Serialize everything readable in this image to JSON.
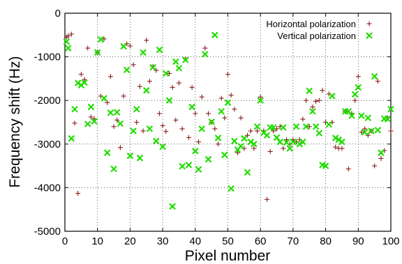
{
  "chart_data": {
    "type": "scatter",
    "xlabel": "Pixel number",
    "ylabel": "Frequency shift (Hz)",
    "xlim": [
      0,
      100
    ],
    "ylim": [
      -5000,
      0
    ],
    "xticks": [
      0,
      10,
      20,
      30,
      40,
      50,
      60,
      70,
      80,
      90,
      100
    ],
    "yticks": [
      0,
      -1000,
      -2000,
      -3000,
      -4000,
      -5000
    ],
    "grid": "dotted",
    "legend_position": "top-right",
    "series": [
      {
        "name": "Horizontal polarization",
        "marker": "plus",
        "color": "#8b1a1a",
        "points": [
          [
            0.5,
            -550
          ],
          [
            1,
            -520
          ],
          [
            2,
            -480
          ],
          [
            3,
            -2520
          ],
          [
            4,
            -4130
          ],
          [
            5,
            -1400
          ],
          [
            6,
            -1520
          ],
          [
            7,
            -800
          ],
          [
            8,
            -2380
          ],
          [
            9,
            -2420
          ],
          [
            10,
            -900
          ],
          [
            11,
            -1900
          ],
          [
            12,
            -590
          ],
          [
            13,
            -2050
          ],
          [
            14,
            -1450
          ],
          [
            15,
            -2600
          ],
          [
            16,
            -2450
          ],
          [
            17,
            -3080
          ],
          [
            18,
            -1900
          ],
          [
            19,
            -700
          ],
          [
            20,
            -750
          ],
          [
            21,
            -1180
          ],
          [
            22,
            -2500
          ],
          [
            23,
            -1680
          ],
          [
            24,
            -2700
          ],
          [
            25,
            -620
          ],
          [
            26,
            -1560
          ],
          [
            27,
            -1220
          ],
          [
            28,
            -1310
          ],
          [
            29,
            -2300
          ],
          [
            30,
            -2580
          ],
          [
            31,
            -2710
          ],
          [
            32,
            -1380
          ],
          [
            33,
            -1700
          ],
          [
            34,
            -2450
          ],
          [
            35,
            -1600
          ],
          [
            36,
            -2650
          ],
          [
            37,
            -1050
          ],
          [
            38,
            -2850
          ],
          [
            39,
            -1700
          ],
          [
            40,
            -2300
          ],
          [
            41,
            -2950
          ],
          [
            42,
            -1920
          ],
          [
            43,
            -800
          ],
          [
            44,
            -2300
          ],
          [
            45,
            -2500
          ],
          [
            46,
            -2650
          ],
          [
            47,
            -3000
          ],
          [
            48,
            -1950
          ],
          [
            49,
            -2400
          ],
          [
            50,
            -1400
          ],
          [
            51,
            -1880
          ],
          [
            52,
            -2200
          ],
          [
            53,
            -3200
          ],
          [
            54,
            -2400
          ],
          [
            55,
            -3100
          ],
          [
            56,
            -2800
          ],
          [
            57,
            -2700
          ],
          [
            58,
            -3100
          ],
          [
            59,
            -2700
          ],
          [
            60,
            -1920
          ],
          [
            61,
            -2700
          ],
          [
            62,
            -4270
          ],
          [
            63,
            -3170
          ],
          [
            64,
            -2700
          ],
          [
            65,
            -2650
          ],
          [
            66,
            -2600
          ],
          [
            67,
            -3100
          ],
          [
            68,
            -2900
          ],
          [
            69,
            -3000
          ],
          [
            70,
            -2900
          ],
          [
            71,
            -2950
          ],
          [
            72,
            -2900
          ],
          [
            73,
            -2430
          ],
          [
            74,
            -2000
          ],
          [
            75,
            -2600
          ],
          [
            76,
            -2150
          ],
          [
            77,
            -2020
          ],
          [
            78,
            -2000
          ],
          [
            79,
            -1770
          ],
          [
            80,
            -2500
          ],
          [
            81,
            -1850
          ],
          [
            82,
            -2500
          ],
          [
            83,
            -3070
          ],
          [
            84,
            -3100
          ],
          [
            85,
            -3100
          ],
          [
            86,
            -2250
          ],
          [
            87,
            -3570
          ],
          [
            88,
            -2300
          ],
          [
            89,
            -2000
          ],
          [
            90,
            -1450
          ],
          [
            91,
            -2730
          ],
          [
            92,
            -2650
          ],
          [
            93,
            -2800
          ],
          [
            94,
            -2700
          ],
          [
            95,
            -3500
          ],
          [
            96,
            -1560
          ],
          [
            97,
            -3330
          ],
          [
            98,
            -3150
          ],
          [
            99,
            -2400
          ],
          [
            100,
            -2700
          ]
        ]
      },
      {
        "name": "Vertical polarization",
        "marker": "x",
        "color": "#22dd00",
        "points": [
          [
            0.5,
            -650
          ],
          [
            1,
            -800
          ],
          [
            2,
            -2870
          ],
          [
            3,
            -2200
          ],
          [
            4,
            -1600
          ],
          [
            5,
            -1650
          ],
          [
            6,
            -1590
          ],
          [
            7,
            -2540
          ],
          [
            8,
            -2150
          ],
          [
            9,
            -2480
          ],
          [
            10,
            -900
          ],
          [
            11,
            -600
          ],
          [
            12,
            -1950
          ],
          [
            13,
            -3200
          ],
          [
            14,
            -2280
          ],
          [
            15,
            -3570
          ],
          [
            16,
            -2270
          ],
          [
            17,
            -2530
          ],
          [
            18,
            -760
          ],
          [
            19,
            -1300
          ],
          [
            20,
            -3270
          ],
          [
            21,
            -2700
          ],
          [
            22,
            -2200
          ],
          [
            23,
            -3320
          ],
          [
            24,
            -900
          ],
          [
            25,
            -1770
          ],
          [
            26,
            -2650
          ],
          [
            27,
            -1240
          ],
          [
            28,
            -2930
          ],
          [
            29,
            -840
          ],
          [
            30,
            -3060
          ],
          [
            31,
            -1380
          ],
          [
            32,
            -2000
          ],
          [
            33,
            -4430
          ],
          [
            34,
            -1110
          ],
          [
            35,
            -1260
          ],
          [
            36,
            -3510
          ],
          [
            37,
            -1070
          ],
          [
            38,
            -3480
          ],
          [
            39,
            -2150
          ],
          [
            40,
            -3160
          ],
          [
            41,
            -3580
          ],
          [
            42,
            -2650
          ],
          [
            43,
            -940
          ],
          [
            44,
            -3350
          ],
          [
            45,
            -2490
          ],
          [
            46,
            -500
          ],
          [
            47,
            -2860
          ],
          [
            48,
            -2250
          ],
          [
            49,
            -3250
          ],
          [
            50,
            -2050
          ],
          [
            51,
            -4020
          ],
          [
            52,
            -2930
          ],
          [
            53,
            -3130
          ],
          [
            54,
            -3050
          ],
          [
            55,
            -2870
          ],
          [
            56,
            -3650
          ],
          [
            57,
            -2950
          ],
          [
            58,
            -3000
          ],
          [
            59,
            -2600
          ],
          [
            60,
            -2000
          ],
          [
            61,
            -2740
          ],
          [
            62,
            -2800
          ],
          [
            63,
            -2620
          ],
          [
            64,
            -2620
          ],
          [
            65,
            -2850
          ],
          [
            66,
            -2950
          ],
          [
            67,
            -2620
          ],
          [
            68,
            -2960
          ],
          [
            69,
            -3100
          ],
          [
            70,
            -2950
          ],
          [
            71,
            -2600
          ],
          [
            72,
            -3000
          ],
          [
            73,
            -2950
          ],
          [
            74,
            -2600
          ],
          [
            75,
            -1780
          ],
          [
            76,
            -2250
          ],
          [
            77,
            -2600
          ],
          [
            78,
            -2750
          ],
          [
            79,
            -3480
          ],
          [
            80,
            -3500
          ],
          [
            81,
            -2550
          ],
          [
            82,
            -1900
          ],
          [
            83,
            -2860
          ],
          [
            84,
            -2900
          ],
          [
            85,
            -2950
          ],
          [
            86,
            -2250
          ],
          [
            87,
            -2250
          ],
          [
            88,
            -2350
          ],
          [
            89,
            -1860
          ],
          [
            90,
            -1700
          ],
          [
            91,
            -2350
          ],
          [
            92,
            -2730
          ],
          [
            93,
            -2400
          ],
          [
            94,
            -2700
          ],
          [
            95,
            -1450
          ],
          [
            96,
            -2680
          ],
          [
            97,
            -3200
          ],
          [
            98,
            -2420
          ],
          [
            99,
            -2420
          ],
          [
            100,
            -2200
          ]
        ]
      }
    ]
  }
}
